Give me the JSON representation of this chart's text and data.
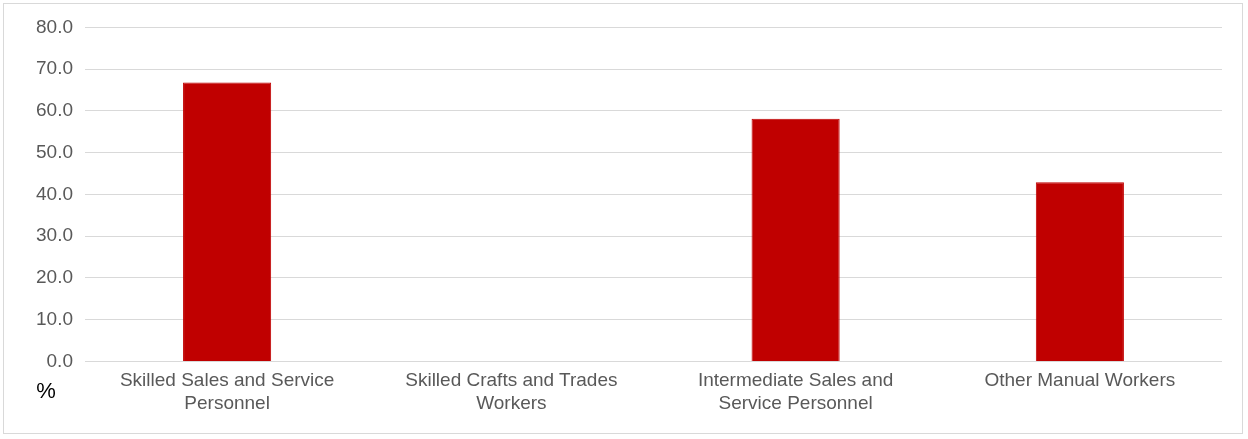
{
  "chart_data": {
    "type": "bar",
    "ylabel": "%",
    "categories": [
      "Skilled Sales and Service Personnel",
      "Skilled Crafts and Trades Workers",
      "Intermediate Sales and Service Personnel",
      "Other Manual Workers"
    ],
    "values": [
      66.8,
      null,
      58.1,
      42.9
    ],
    "color": "#c00000",
    "ylim": [
      0,
      80
    ],
    "yticks": [
      {
        "value": 0,
        "label": "0.0"
      },
      {
        "value": 10,
        "label": "10.0"
      },
      {
        "value": 20,
        "label": "20.0"
      },
      {
        "value": 30,
        "label": "30.0"
      },
      {
        "value": 40,
        "label": "40.0"
      },
      {
        "value": 50,
        "label": "50.0"
      },
      {
        "value": 60,
        "label": "60.0"
      },
      {
        "value": 70,
        "label": "70.0"
      },
      {
        "value": 80,
        "label": "80.0"
      }
    ],
    "grid": "y",
    "legend": false
  }
}
